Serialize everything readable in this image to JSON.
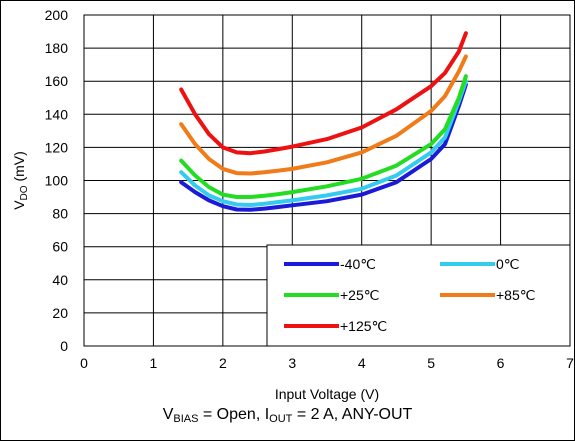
{
  "chart_data": {
    "type": "line",
    "xlabel": "Input Voltage (V)",
    "ylabel_main": "V",
    "ylabel_sub": "DO",
    "ylabel_rest": " (mV)",
    "xlim": [
      0,
      7
    ],
    "ylim": [
      0,
      200
    ],
    "xticks": [
      0,
      1,
      2,
      3,
      4,
      5,
      6,
      7
    ],
    "yticks": [
      0,
      20,
      40,
      60,
      80,
      100,
      120,
      140,
      160,
      180,
      200
    ],
    "grid": true,
    "legend_position": "bottom-right",
    "series": [
      {
        "name": "-40℃",
        "color": "#1a1ad8",
        "x": [
          1.4,
          1.6,
          1.8,
          2.0,
          2.2,
          2.4,
          2.6,
          2.8,
          3.0,
          3.5,
          4.0,
          4.5,
          5.0,
          5.2,
          5.4,
          5.5
        ],
        "y": [
          99,
          93,
          88,
          84.5,
          82.5,
          82.3,
          83,
          84,
          85,
          87.5,
          91.5,
          99,
          113,
          122,
          145,
          158
        ]
      },
      {
        "name": "0℃",
        "color": "#33ccee",
        "x": [
          1.4,
          1.6,
          1.8,
          2.0,
          2.2,
          2.4,
          2.6,
          2.8,
          3.0,
          3.5,
          4.0,
          4.5,
          5.0,
          5.2,
          5.4,
          5.5
        ],
        "y": [
          105,
          97,
          91,
          87.5,
          85.5,
          85.2,
          86,
          87,
          88,
          91,
          95,
          103,
          117,
          126,
          148,
          160
        ]
      },
      {
        "name": "+25℃",
        "color": "#22dd22",
        "x": [
          1.4,
          1.6,
          1.8,
          2.0,
          2.2,
          2.4,
          2.6,
          2.8,
          3.0,
          3.5,
          4.0,
          4.5,
          5.0,
          5.2,
          5.4,
          5.5
        ],
        "y": [
          112,
          103,
          96,
          91.5,
          90,
          90,
          90.8,
          91.8,
          93,
          96.5,
          101,
          109,
          122,
          131,
          150,
          163
        ]
      },
      {
        "name": "+85℃",
        "color": "#f07b18",
        "x": [
          1.4,
          1.6,
          1.8,
          2.0,
          2.2,
          2.4,
          2.6,
          2.8,
          3.0,
          3.5,
          4.0,
          4.5,
          5.0,
          5.2,
          5.4,
          5.5
        ],
        "y": [
          134,
          122,
          113,
          107,
          104.5,
          104.2,
          105,
          106,
          107,
          111,
          117,
          127,
          142,
          151,
          166,
          175
        ]
      },
      {
        "name": "+125℃",
        "color": "#ee1111",
        "x": [
          1.4,
          1.6,
          1.8,
          2.0,
          2.2,
          2.4,
          2.6,
          2.8,
          3.0,
          3.5,
          4.0,
          4.5,
          5.0,
          5.2,
          5.4,
          5.5
        ],
        "y": [
          155,
          140,
          128,
          120,
          117,
          116.5,
          117.5,
          119,
          120.5,
          125,
          132,
          143,
          157,
          165,
          178,
          189
        ]
      }
    ]
  },
  "caption": {
    "part1": "V",
    "sub1": "BIAS",
    "part2": " = Open, I",
    "sub2": "OUT",
    "part3": " = 2 A, ANY-OUT"
  }
}
